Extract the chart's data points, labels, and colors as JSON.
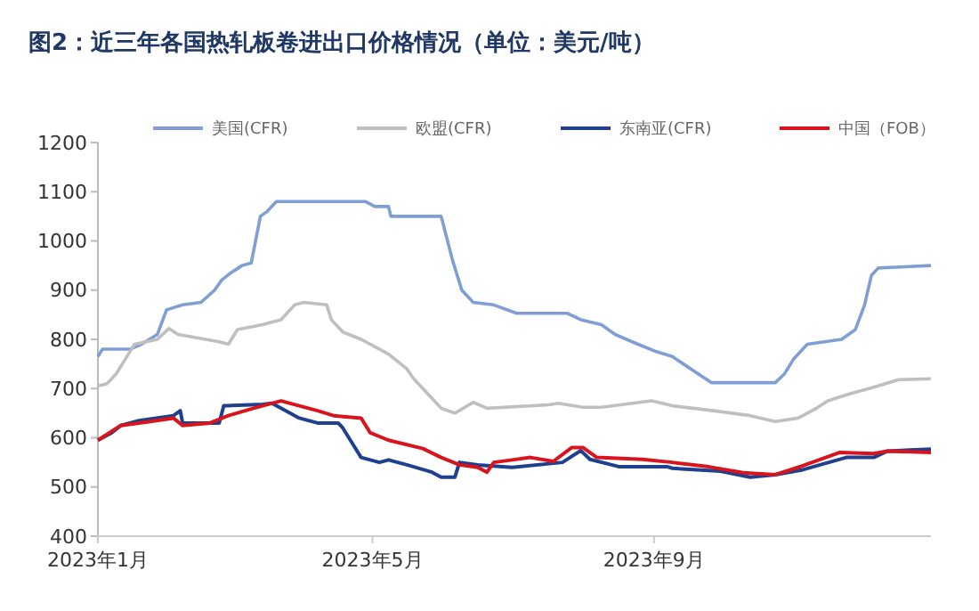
{
  "chart_data": {
    "type": "line",
    "title": "图2：近三年各国热轧板卷进出口价格情况（单位：美元/吨）",
    "legend": "top",
    "grid": false,
    "xlim": [
      "2023-01-01",
      "2023-12-31"
    ],
    "xticks": [
      {
        "value": "2023-01-01",
        "label": "2023年1月"
      },
      {
        "value": "2023-05-01",
        "label": "2023年5月"
      },
      {
        "value": "2023-09-01",
        "label": "2023年9月"
      }
    ],
    "ylim": [
      400,
      1200
    ],
    "yticks": [
      400,
      500,
      600,
      700,
      800,
      900,
      1000,
      1100,
      1200
    ],
    "series": [
      {
        "name": "美国(CFR)",
        "color": "#7f9fd4",
        "x": [
          "2023-01-01",
          "2023-01-03",
          "2023-01-15",
          "2023-01-20",
          "2023-01-27",
          "2023-01-31",
          "2023-02-07",
          "2023-02-15",
          "2023-02-21",
          "2023-02-24",
          "2023-02-28",
          "2023-03-05",
          "2023-03-09",
          "2023-03-13",
          "2023-03-16",
          "2023-03-20",
          "2023-04-28",
          "2023-05-02",
          "2023-05-08",
          "2023-05-09",
          "2023-05-31",
          "2023-06-05",
          "2023-06-09",
          "2023-06-14",
          "2023-06-23",
          "2023-07-03",
          "2023-07-25",
          "2023-07-31",
          "2023-08-09",
          "2023-08-15",
          "2023-08-25",
          "2023-09-02",
          "2023-09-09",
          "2023-09-26",
          "2023-10-24",
          "2023-10-28",
          "2023-11-01",
          "2023-11-07",
          "2023-11-22",
          "2023-11-28",
          "2023-12-02",
          "2023-12-05",
          "2023-12-08",
          "2023-12-31"
        ],
        "values": [
          765,
          780,
          780,
          790,
          810,
          860,
          870,
          875,
          900,
          920,
          935,
          950,
          955,
          1050,
          1060,
          1080,
          1080,
          1070,
          1070,
          1050,
          1050,
          960,
          900,
          875,
          870,
          853,
          853,
          840,
          830,
          810,
          790,
          775,
          765,
          712,
          712,
          730,
          760,
          790,
          800,
          820,
          870,
          930,
          945,
          950
        ]
      },
      {
        "name": "欧盟(CFR)",
        "color": "#bfbfbf",
        "x": [
          "2023-01-01",
          "2023-01-05",
          "2023-01-09",
          "2023-01-13",
          "2023-01-17",
          "2023-01-27",
          "2023-02-01",
          "2023-02-05",
          "2023-02-11",
          "2023-02-23",
          "2023-02-27",
          "2023-03-03",
          "2023-03-14",
          "2023-03-22",
          "2023-03-28",
          "2023-04-01",
          "2023-04-11",
          "2023-04-13",
          "2023-04-18",
          "2023-04-26",
          "2023-04-30",
          "2023-05-08",
          "2023-05-16",
          "2023-05-19",
          "2023-05-23",
          "2023-05-31",
          "2023-06-06",
          "2023-06-14",
          "2023-06-20",
          "2023-07-17",
          "2023-07-21",
          "2023-08-01",
          "2023-08-09",
          "2023-08-31",
          "2023-09-09",
          "2023-09-27",
          "2023-10-13",
          "2023-10-24",
          "2023-11-03",
          "2023-11-11",
          "2023-11-16",
          "2023-11-26",
          "2023-12-04",
          "2023-12-17",
          "2023-12-31"
        ],
        "values": [
          705,
          710,
          730,
          760,
          790,
          800,
          822,
          810,
          805,
          795,
          790,
          820,
          830,
          840,
          870,
          875,
          870,
          840,
          815,
          800,
          790,
          770,
          740,
          720,
          700,
          660,
          650,
          672,
          660,
          667,
          670,
          662,
          662,
          675,
          665,
          655,
          645,
          633,
          640,
          660,
          675,
          690,
          700,
          718,
          720
        ]
      },
      {
        "name": "东南亚(CFR)",
        "color": "#1f3f8f",
        "x": [
          "2023-01-01",
          "2023-01-07",
          "2023-01-11",
          "2023-01-19",
          "2023-02-03",
          "2023-02-06",
          "2023-02-07",
          "2023-02-23",
          "2023-02-25",
          "2023-03-14",
          "2023-03-18",
          "2023-03-22",
          "2023-03-30",
          "2023-04-07",
          "2023-04-16",
          "2023-04-18",
          "2023-04-22",
          "2023-04-26",
          "2023-05-04",
          "2023-05-08",
          "2023-05-16",
          "2023-05-27",
          "2023-05-31",
          "2023-06-06",
          "2023-06-08",
          "2023-06-16",
          "2023-07-01",
          "2023-07-23",
          "2023-07-31",
          "2023-08-04",
          "2023-08-17",
          "2023-09-07",
          "2023-09-09",
          "2023-09-30",
          "2023-10-13",
          "2023-10-24",
          "2023-11-05",
          "2023-11-24",
          "2023-12-06",
          "2023-12-12",
          "2023-12-31"
        ],
        "values": [
          595,
          610,
          625,
          635,
          645,
          655,
          630,
          630,
          665,
          668,
          670,
          660,
          640,
          630,
          630,
          620,
          590,
          560,
          550,
          555,
          545,
          530,
          520,
          520,
          550,
          545,
          540,
          550,
          574,
          556,
          541,
          541,
          538,
          532,
          520,
          525,
          535,
          560,
          560,
          573,
          577
        ]
      },
      {
        "name": "中国（FOB）",
        "color": "#d9141c",
        "x": [
          "2023-01-01",
          "2023-01-11",
          "2023-01-19",
          "2023-02-03",
          "2023-02-07",
          "2023-02-19",
          "2023-02-27",
          "2023-03-10",
          "2023-03-22",
          "2023-03-30",
          "2023-04-07",
          "2023-04-14",
          "2023-04-26",
          "2023-04-30",
          "2023-05-08",
          "2023-05-23",
          "2023-05-31",
          "2023-06-08",
          "2023-06-16",
          "2023-06-20",
          "2023-06-23",
          "2023-07-01",
          "2023-07-09",
          "2023-07-19",
          "2023-07-27",
          "2023-08-01",
          "2023-08-07",
          "2023-08-27",
          "2023-09-09",
          "2023-09-25",
          "2023-10-10",
          "2023-10-24",
          "2023-11-05",
          "2023-11-21",
          "2023-12-06",
          "2023-12-12",
          "2023-12-31"
        ],
        "values": [
          595,
          625,
          630,
          640,
          625,
          630,
          645,
          660,
          675,
          665,
          655,
          645,
          640,
          610,
          595,
          578,
          560,
          545,
          540,
          530,
          550,
          555,
          560,
          552,
          580,
          580,
          560,
          556,
          550,
          541,
          529,
          525,
          543,
          570,
          568,
          573,
          570
        ]
      }
    ]
  }
}
